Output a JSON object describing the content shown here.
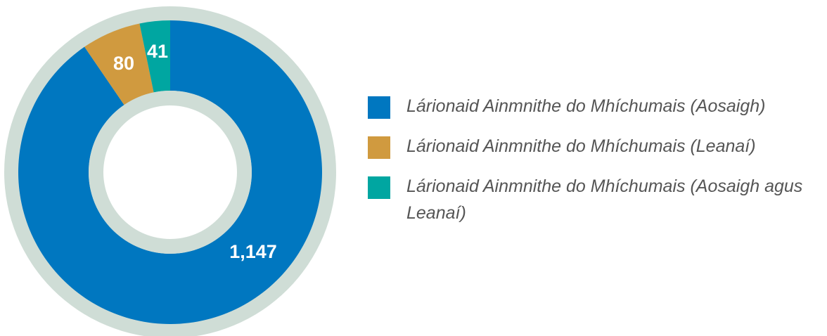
{
  "chart_data": {
    "type": "donut",
    "categories": [
      "Lárionaid Ainmnithe do Mhíchumais (Aosaigh)",
      "Lárionaid Ainmnithe do Mhíchumais (Leanaí)",
      "Lárionaid Ainmnithe do Mhíchumais (Aosaigh agus Leanaí)"
    ],
    "values": [
      1147,
      80,
      41
    ],
    "value_labels": [
      "1,147",
      "80",
      "41"
    ],
    "colors": [
      "#0077c0",
      "#d09a3f",
      "#00a6a1"
    ]
  }
}
